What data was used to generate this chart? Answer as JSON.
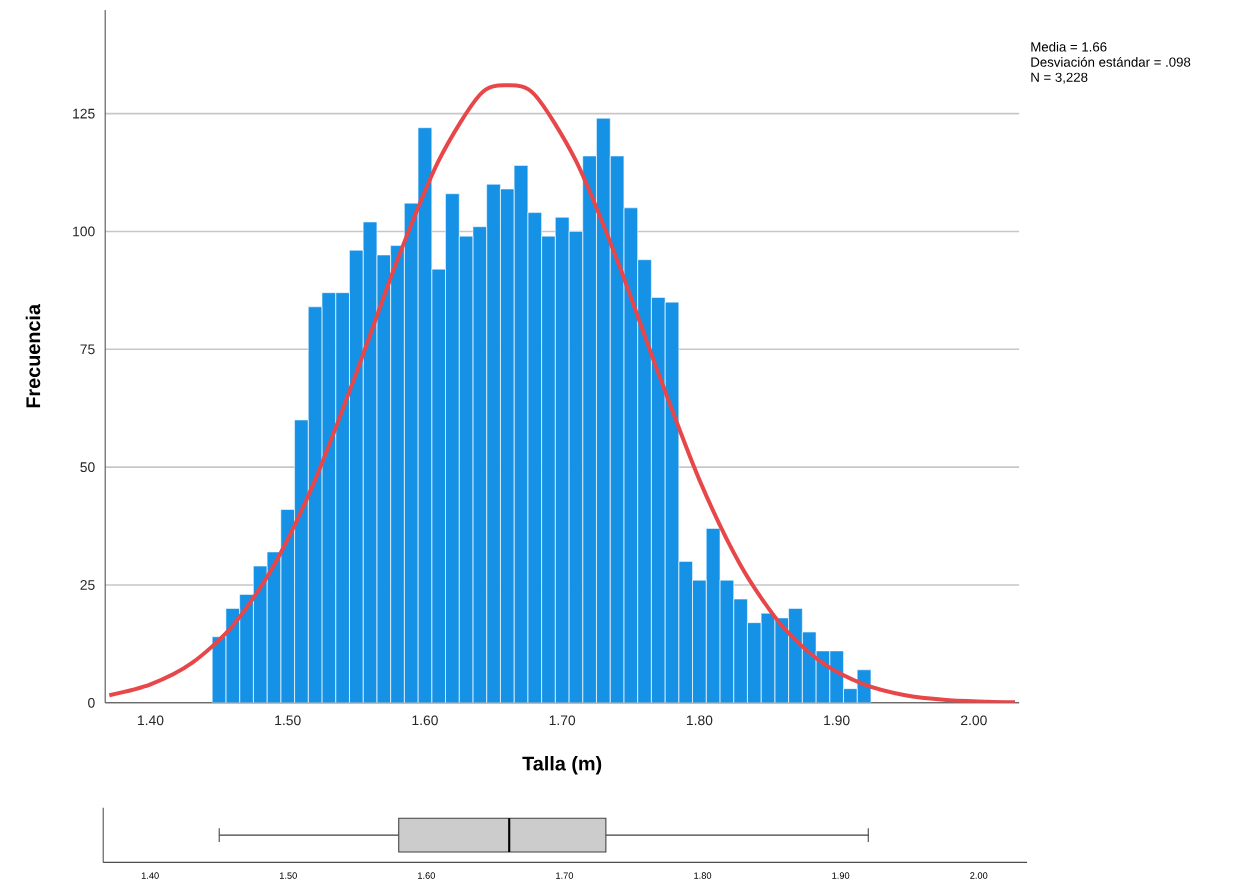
{
  "chart_data": [
    {
      "type": "histogram",
      "xlabel": "Talla (m)",
      "ylabel": "Frecuencia",
      "bins": [
        1.445,
        1.455,
        1.465,
        1.475,
        1.485,
        1.495,
        1.505,
        1.515,
        1.525,
        1.535,
        1.545,
        1.555,
        1.565,
        1.575,
        1.585,
        1.595,
        1.605,
        1.615,
        1.625,
        1.635,
        1.645,
        1.655,
        1.665,
        1.675,
        1.685,
        1.695,
        1.705,
        1.715,
        1.725,
        1.735,
        1.745,
        1.755,
        1.765,
        1.775,
        1.785,
        1.795,
        1.805,
        1.815,
        1.825,
        1.835,
        1.845,
        1.855,
        1.865,
        1.875,
        1.885,
        1.895,
        1.905,
        1.915,
        1.925
      ],
      "series": [
        {
          "type": "histogram",
          "color": "#1591e6",
          "values": [
            14,
            20,
            23,
            29,
            32,
            41,
            60,
            84,
            87,
            87,
            96,
            102,
            95,
            97,
            106,
            122,
            92,
            108,
            99,
            101,
            110,
            109,
            114,
            104,
            99,
            103,
            100,
            116,
            124,
            116,
            105,
            94,
            86,
            85,
            30,
            26,
            37,
            26,
            22,
            17,
            19,
            18,
            20,
            15,
            11,
            11,
            3,
            7
          ]
        },
        {
          "type": "line",
          "color": "#e8474a",
          "x": [
            1.37,
            1.4,
            1.43,
            1.46,
            1.49,
            1.52,
            1.55,
            1.58,
            1.61,
            1.64,
            1.66,
            1.68,
            1.71,
            1.74,
            1.77,
            1.8,
            1.83,
            1.86,
            1.89,
            1.92,
            1.95,
            1.98,
            2.01,
            2.03
          ],
          "values": [
            1.6,
            3.9,
            8.4,
            16.4,
            29.2,
            47.3,
            70,
            94,
            115,
            129,
            131,
            129,
            115,
            94,
            70,
            47.3,
            29.2,
            16.4,
            8.4,
            3.9,
            1.6,
            0.6,
            0.2,
            0.1
          ]
        }
      ],
      "xlim": [
        1.367,
        2.033
      ],
      "ylim": [
        0,
        147
      ],
      "xticks": [
        {
          "value": 1.4,
          "label": "1.40"
        },
        {
          "value": 1.5,
          "label": "1.50"
        },
        {
          "value": 1.6,
          "label": "1.60"
        },
        {
          "value": 1.7,
          "label": "1.70"
        },
        {
          "value": 1.8,
          "label": "1.80"
        },
        {
          "value": 1.9,
          "label": "1.90"
        },
        {
          "value": 2.0,
          "label": "2.00"
        }
      ],
      "yticks": [
        0,
        25,
        50,
        75,
        100,
        125
      ],
      "grid": "y",
      "annotations": [
        "Media = 1.66",
        "Desviación estándar = .098",
        "N = 3,228"
      ]
    },
    {
      "type": "box",
      "orientation": "horizontal",
      "categories": [
        null
      ],
      "color": "#cccccc",
      "boxes": [
        {
          "low": 1.45,
          "q1": 1.58,
          "median": 1.66,
          "q3": 1.73,
          "high": 1.92
        }
      ],
      "xlim": [
        1.366,
        2.035
      ],
      "xticks": [
        {
          "value": 1.4,
          "label": "1.40"
        },
        {
          "value": 1.5,
          "label": "1.50"
        },
        {
          "value": 1.6,
          "label": "1.60"
        },
        {
          "value": 1.7,
          "label": "1.70"
        },
        {
          "value": 1.8,
          "label": "1.80"
        },
        {
          "value": 1.9,
          "label": "1.90"
        },
        {
          "value": 2.0,
          "label": "2.00"
        }
      ],
      "tick_labels": "x"
    }
  ]
}
